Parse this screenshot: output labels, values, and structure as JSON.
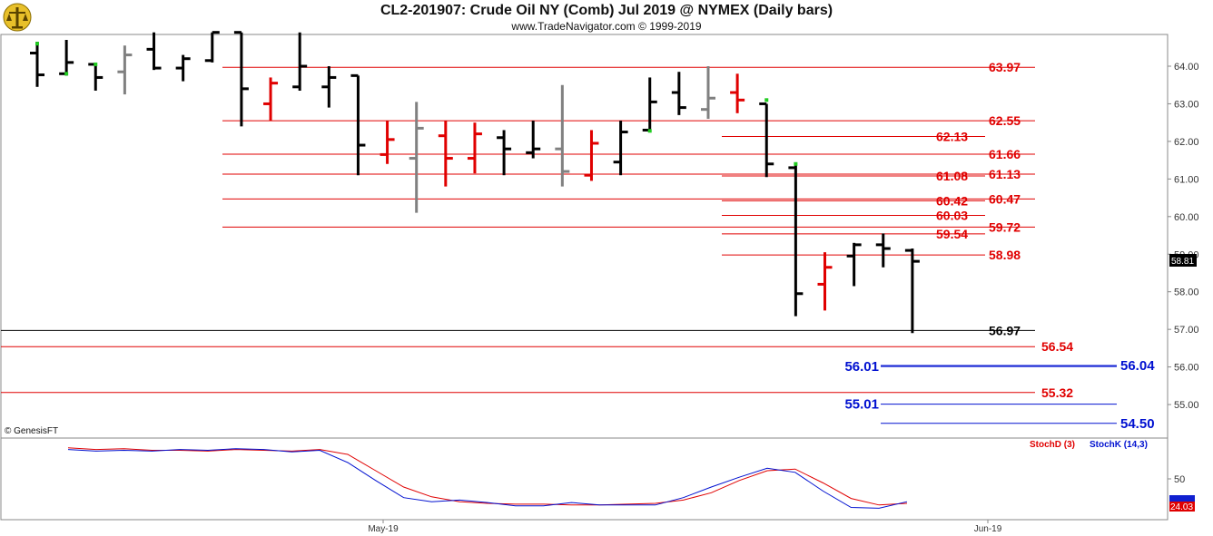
{
  "header": {
    "title": "CL2-201907:  Crude Oil NY (Comb) Jul 2019 @ NYMEX  (Daily bars)",
    "subtitle": "www.TradeNavigator.com © 1999-2019"
  },
  "copyright": "© GenesisFT",
  "last_price_badge": "58.81",
  "indicator": {
    "stochD_label": "StochD (3)",
    "stochK_label": "StochK (14,3)",
    "last_value_badge": "24.03",
    "axis_ticks": [
      "50"
    ],
    "d_color": "#e00000",
    "k_color": "#0010d0"
  },
  "x_axis": {
    "labels": [
      "May-19",
      "Jun-19"
    ]
  },
  "chart_data": {
    "type": "ohlc",
    "title": "CL2-201907:  Crude Oil NY (Comb) Jul 2019 @ NYMEX  (Daily bars)",
    "ylim": [
      54.3,
      64.9
    ],
    "y_ticks": [
      "64.00",
      "63.00",
      "62.00",
      "61.00",
      "60.00",
      "59.00",
      "58.00",
      "57.00",
      "56.00",
      "55.00"
    ],
    "y_tick_values": [
      64,
      63,
      62,
      61,
      60,
      59,
      58,
      57,
      56,
      55
    ],
    "bars": [
      {
        "o": 64.35,
        "h": 64.65,
        "l": 63.45,
        "c": 63.77,
        "color": "#000000"
      },
      {
        "o": 63.8,
        "h": 64.7,
        "l": 63.75,
        "c": 64.1,
        "color": "#000000"
      },
      {
        "o": 64.05,
        "h": 64.05,
        "l": 63.35,
        "c": 63.7,
        "color": "#000000"
      },
      {
        "o": 63.85,
        "h": 64.55,
        "l": 63.25,
        "c": 64.3,
        "color": "#808080"
      },
      {
        "o": 64.45,
        "h": 64.9,
        "l": 63.9,
        "c": 63.95,
        "color": "#000000"
      },
      {
        "o": 63.95,
        "h": 64.3,
        "l": 63.6,
        "c": 64.2,
        "color": "#000000"
      },
      {
        "o": 64.15,
        "h": 64.9,
        "l": 64.1,
        "c": 64.9,
        "color": "#000000"
      },
      {
        "o": 64.9,
        "h": 64.9,
        "l": 62.4,
        "c": 63.4,
        "color": "#000000"
      },
      {
        "o": 63.0,
        "h": 63.7,
        "l": 62.55,
        "c": 63.55,
        "color": "#e00000"
      },
      {
        "o": 63.45,
        "h": 64.9,
        "l": 63.35,
        "c": 64.0,
        "color": "#000000"
      },
      {
        "o": 63.45,
        "h": 64.0,
        "l": 62.9,
        "c": 63.7,
        "color": "#000000"
      },
      {
        "o": 63.75,
        "h": 63.75,
        "l": 61.1,
        "c": 61.9,
        "color": "#000000"
      },
      {
        "o": 61.65,
        "h": 62.55,
        "l": 61.4,
        "c": 62.05,
        "color": "#e00000"
      },
      {
        "o": 61.55,
        "h": 63.05,
        "l": 60.1,
        "c": 62.35,
        "color": "#808080"
      },
      {
        "o": 62.15,
        "h": 62.55,
        "l": 60.8,
        "c": 61.55,
        "color": "#e00000"
      },
      {
        "o": 61.55,
        "h": 62.5,
        "l": 61.15,
        "c": 62.2,
        "color": "#e00000"
      },
      {
        "o": 62.1,
        "h": 62.3,
        "l": 61.1,
        "c": 61.8,
        "color": "#000000"
      },
      {
        "o": 61.7,
        "h": 62.55,
        "l": 61.55,
        "c": 61.8,
        "color": "#000000"
      },
      {
        "o": 61.8,
        "h": 63.5,
        "l": 60.8,
        "c": 61.2,
        "color": "#808080"
      },
      {
        "o": 61.1,
        "h": 62.3,
        "l": 60.95,
        "c": 61.95,
        "color": "#e00000"
      },
      {
        "o": 61.45,
        "h": 62.55,
        "l": 61.1,
        "c": 62.25,
        "color": "#000000"
      },
      {
        "o": 62.3,
        "h": 63.7,
        "l": 62.25,
        "c": 63.05,
        "color": "#000000"
      },
      {
        "o": 63.3,
        "h": 63.85,
        "l": 62.7,
        "c": 62.9,
        "color": "#000000"
      },
      {
        "o": 62.85,
        "h": 64.0,
        "l": 62.6,
        "c": 63.15,
        "color": "#808080"
      },
      {
        "o": 63.3,
        "h": 63.8,
        "l": 62.75,
        "c": 63.1,
        "color": "#e00000"
      },
      {
        "o": 63.0,
        "h": 63.0,
        "l": 61.05,
        "c": 61.4,
        "color": "#000000"
      },
      {
        "o": 61.3,
        "h": 61.4,
        "l": 57.35,
        "c": 57.95,
        "color": "#000000"
      },
      {
        "o": 58.2,
        "h": 59.05,
        "l": 57.5,
        "c": 58.65,
        "color": "#e00000"
      },
      {
        "o": 58.95,
        "h": 59.3,
        "l": 58.15,
        "c": 59.25,
        "color": "#000000"
      },
      {
        "o": 59.25,
        "h": 59.55,
        "l": 58.65,
        "c": 59.15,
        "color": "#000000"
      },
      {
        "o": 59.1,
        "h": 59.15,
        "l": 56.9,
        "c": 58.81,
        "color": "#000000"
      }
    ],
    "up_marks": [
      {
        "bar": 0,
        "value": 64.6
      },
      {
        "bar": 1,
        "value": 63.8
      },
      {
        "bar": 2,
        "value": 64.05
      },
      {
        "bar": 21,
        "value": 62.28
      },
      {
        "bar": 25,
        "value": 63.1
      },
      {
        "bar": 26,
        "value": 61.4
      }
    ],
    "levels": [
      {
        "value": 63.97,
        "label": "63.97",
        "color": "#e00000",
        "labelColor": "#e00000",
        "style": "full",
        "labelPos": "right"
      },
      {
        "value": 62.55,
        "label": "62.55",
        "color": "#e00000",
        "labelColor": "#e00000",
        "style": "full",
        "labelPos": "right"
      },
      {
        "value": 62.13,
        "label": "62.13",
        "color": "#e00000",
        "labelColor": "#e00000",
        "style": "short",
        "labelPos": "mid"
      },
      {
        "value": 61.66,
        "label": "61.66",
        "color": "#e00000",
        "labelColor": "#e00000",
        "style": "full",
        "labelPos": "right"
      },
      {
        "value": 61.13,
        "label": "61.13",
        "color": "#e00000",
        "labelColor": "#e00000",
        "style": "full",
        "labelPos": "right"
      },
      {
        "value": 61.08,
        "label": "61.08",
        "color": "#e00000",
        "labelColor": "#e00000",
        "style": "short",
        "labelPos": "mid"
      },
      {
        "value": 60.47,
        "label": "60.47",
        "color": "#e00000",
        "labelColor": "#e00000",
        "style": "full",
        "labelPos": "right"
      },
      {
        "value": 60.42,
        "label": "60.42",
        "color": "#e00000",
        "labelColor": "#e00000",
        "style": "short",
        "labelPos": "mid"
      },
      {
        "value": 60.03,
        "label": "60.03",
        "color": "#e00000",
        "labelColor": "#e00000",
        "style": "short",
        "labelPos": "mid"
      },
      {
        "value": 59.72,
        "label": "59.72",
        "color": "#e00000",
        "labelColor": "#e00000",
        "style": "full",
        "labelPos": "right"
      },
      {
        "value": 59.54,
        "label": "59.54",
        "color": "#e00000",
        "labelColor": "#e00000",
        "style": "short",
        "labelPos": "mid"
      },
      {
        "value": 58.98,
        "label": "58.98",
        "color": "#e00000",
        "labelColor": "#e00000",
        "style": "short",
        "labelPos": "right"
      },
      {
        "value": 56.97,
        "label": "56.97",
        "color": "#000000",
        "labelColor": "#000000",
        "style": "wide",
        "labelPos": "right"
      },
      {
        "value": 56.54,
        "label": "56.54",
        "color": "#e00000",
        "labelColor": "#e00000",
        "style": "wide",
        "labelPos": "far"
      },
      {
        "value": 56.04,
        "label": "56.04",
        "color": "#0010d0",
        "labelColor": "#0010d0",
        "style": "blue",
        "labelPos": "blueRight"
      },
      {
        "value": 56.01,
        "label": "56.01",
        "color": "#0010d0",
        "labelColor": "#0010d0",
        "style": "blue",
        "labelPos": "blueLeft"
      },
      {
        "value": 55.32,
        "label": "55.32",
        "color": "#e00000",
        "labelColor": "#e00000",
        "style": "wide",
        "labelPos": "far"
      },
      {
        "value": 55.01,
        "label": "55.01",
        "color": "#0010d0",
        "labelColor": "#0010d0",
        "style": "blueShort",
        "labelPos": "blueLeft"
      },
      {
        "value": 54.5,
        "label": "54.50",
        "color": "#0010d0",
        "labelColor": "#0010d0",
        "style": "blue",
        "labelPos": "blueRight"
      }
    ],
    "stoch": {
      "ylim": [
        0,
        100
      ],
      "d": [
        88,
        86,
        87,
        85,
        85,
        84,
        86,
        85,
        84,
        86,
        80,
        60,
        40,
        28,
        22,
        20,
        19,
        19,
        18,
        18,
        19,
        20,
        24,
        33,
        48,
        60,
        62,
        45,
        26,
        18,
        20
      ],
      "k": [
        86,
        84,
        85,
        84,
        86,
        85,
        87,
        86,
        83,
        85,
        70,
        48,
        27,
        22,
        24,
        21,
        17,
        17,
        21,
        18,
        18,
        18,
        27,
        40,
        52,
        63,
        58,
        35,
        15,
        14,
        22
      ]
    }
  }
}
